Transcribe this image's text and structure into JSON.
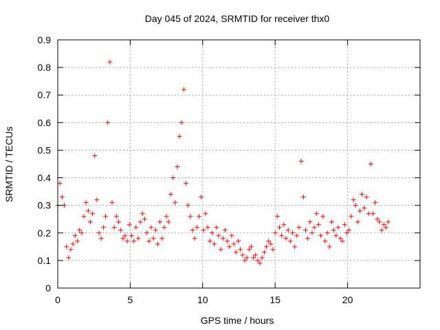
{
  "chart_data": {
    "type": "scatter",
    "title": "Day 045 of 2024, SRMTID for receiver thx0",
    "xlabel": "GPS time / hours",
    "ylabel": "SRMTID / TECUs",
    "xlim": [
      0,
      25
    ],
    "ylim": [
      0,
      0.9
    ],
    "xticks": [
      0,
      5,
      10,
      15,
      20
    ],
    "yticks": [
      0,
      0.1,
      0.2,
      0.3,
      0.4,
      0.5,
      0.6,
      0.7,
      0.8,
      0.9
    ],
    "xtick_labels": [
      "0",
      "5",
      "10",
      "15",
      "20"
    ],
    "ytick_labels": [
      "0",
      "0.1",
      "0.2",
      "0.3",
      "0.4",
      "0.5",
      "0.6",
      "0.7",
      "0.8",
      "0.9"
    ],
    "grid": true,
    "marker": "+",
    "color": "#ff0000",
    "series": [
      {
        "name": "SRMTID",
        "x": [
          0.0,
          0.15,
          0.3,
          0.45,
          0.6,
          0.75,
          0.9,
          1.05,
          1.2,
          1.35,
          1.5,
          1.65,
          1.8,
          1.95,
          2.1,
          2.25,
          2.4,
          2.55,
          2.7,
          2.85,
          3.0,
          3.15,
          3.3,
          3.45,
          3.6,
          3.75,
          3.9,
          4.05,
          4.2,
          4.35,
          4.5,
          4.65,
          4.8,
          4.95,
          5.1,
          5.25,
          5.4,
          5.55,
          5.7,
          5.85,
          6.0,
          6.15,
          6.3,
          6.45,
          6.6,
          6.75,
          6.9,
          7.05,
          7.2,
          7.35,
          7.5,
          7.65,
          7.8,
          7.95,
          8.1,
          8.25,
          8.4,
          8.55,
          8.7,
          8.85,
          9.0,
          9.15,
          9.3,
          9.45,
          9.6,
          9.75,
          9.9,
          10.05,
          10.2,
          10.35,
          10.5,
          10.65,
          10.8,
          10.95,
          11.1,
          11.25,
          11.4,
          11.55,
          11.7,
          11.85,
          12.0,
          12.15,
          12.3,
          12.45,
          12.6,
          12.75,
          12.9,
          13.05,
          13.2,
          13.35,
          13.5,
          13.65,
          13.8,
          13.95,
          14.1,
          14.25,
          14.4,
          14.55,
          14.7,
          14.85,
          15.0,
          15.15,
          15.3,
          15.45,
          15.6,
          15.75,
          15.9,
          16.05,
          16.2,
          16.35,
          16.5,
          16.65,
          16.8,
          16.95,
          17.1,
          17.25,
          17.4,
          17.55,
          17.7,
          17.85,
          18.0,
          18.15,
          18.3,
          18.45,
          18.6,
          18.75,
          18.9,
          19.05,
          19.2,
          19.35,
          19.5,
          19.65,
          19.8,
          19.95,
          20.1,
          20.25,
          20.4,
          20.55,
          20.7,
          20.85,
          21.0,
          21.15,
          21.3,
          21.45,
          21.6,
          21.75,
          21.9,
          22.05,
          22.2,
          22.35,
          22.5,
          22.65,
          22.8
        ],
        "y": [
          0.3,
          0.38,
          0.33,
          0.3,
          0.15,
          0.11,
          0.14,
          0.16,
          0.19,
          0.17,
          0.21,
          0.2,
          0.26,
          0.31,
          0.28,
          0.24,
          0.27,
          0.48,
          0.32,
          0.2,
          0.18,
          0.22,
          0.26,
          0.6,
          0.82,
          0.31,
          0.22,
          0.26,
          0.24,
          0.21,
          0.18,
          0.19,
          0.17,
          0.23,
          0.19,
          0.17,
          0.22,
          0.18,
          0.24,
          0.27,
          0.25,
          0.2,
          0.17,
          0.22,
          0.18,
          0.21,
          0.16,
          0.24,
          0.18,
          0.22,
          0.26,
          0.24,
          0.34,
          0.4,
          0.31,
          0.44,
          0.55,
          0.6,
          0.72,
          0.38,
          0.3,
          0.26,
          0.21,
          0.18,
          0.22,
          0.26,
          0.33,
          0.21,
          0.27,
          0.22,
          0.17,
          0.2,
          0.16,
          0.22,
          0.19,
          0.14,
          0.18,
          0.21,
          0.17,
          0.15,
          0.19,
          0.16,
          0.13,
          0.17,
          0.14,
          0.12,
          0.1,
          0.11,
          0.14,
          0.15,
          0.11,
          0.12,
          0.1,
          0.09,
          0.11,
          0.13,
          0.15,
          0.17,
          0.16,
          0.14,
          0.2,
          0.26,
          0.22,
          0.19,
          0.23,
          0.18,
          0.21,
          0.17,
          0.2,
          0.15,
          0.19,
          0.22,
          0.46,
          0.33,
          0.21,
          0.18,
          0.24,
          0.2,
          0.22,
          0.27,
          0.23,
          0.19,
          0.26,
          0.17,
          0.2,
          0.15,
          0.24,
          0.21,
          0.19,
          0.22,
          0.18,
          0.17,
          0.23,
          0.2,
          0.21,
          0.26,
          0.32,
          0.3,
          0.24,
          0.28,
          0.34,
          0.29,
          0.33,
          0.27,
          0.45,
          0.27,
          0.31,
          0.25,
          0.24,
          0.21,
          0.23,
          0.22,
          0.24
        ]
      }
    ]
  }
}
